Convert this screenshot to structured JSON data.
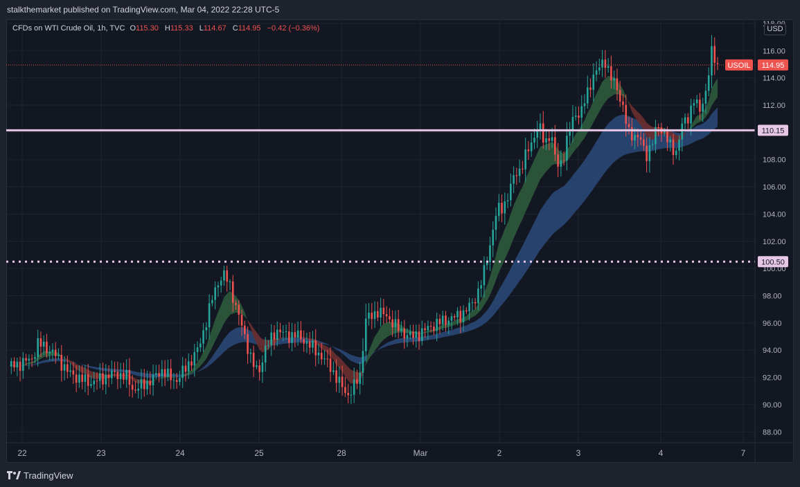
{
  "publish_info": "stalkthemarket published on TradingView.com, Mar 04, 2022 22:28 UTC-5",
  "footer": {
    "brand": "TradingView",
    "logo_icon": "tradingview-logo-icon"
  },
  "legend": {
    "symbol": "CFDs on WTI Crude Oil, 1h, TVC",
    "open_label": "O",
    "open": "115.30",
    "high_label": "H",
    "high": "115.33",
    "low_label": "L",
    "low": "114.67",
    "close_label": "C",
    "close": "114.95",
    "change": "−0.42 (−0.36%)"
  },
  "currency": "USD",
  "colors": {
    "up": "#26a69a",
    "down": "#ef5350",
    "fast_ribbon_up": "#2e5a3c",
    "fast_ribbon_down": "#6b2e2e",
    "slow_ribbon": "#2a4a7a",
    "level": "#e6c7e6",
    "background": "#131722"
  },
  "chart_data": {
    "type": "candlestick",
    "y_axis": {
      "ticks": [
        "88.00",
        "90.00",
        "92.00",
        "94.00",
        "96.00",
        "98.00",
        "100.00",
        "102.00",
        "104.00",
        "106.00",
        "108.00",
        "110.00",
        "112.00",
        "114.00",
        "116.00",
        "118.00"
      ],
      "range": [
        87.2,
        118.3
      ]
    },
    "x_axis": {
      "ticks": [
        "22",
        "23",
        "24",
        "25",
        "28",
        "Mar",
        "2",
        "3",
        "4",
        "7"
      ]
    },
    "levels": [
      {
        "value": 110.15,
        "label": "110.15",
        "style": "solid"
      },
      {
        "value": 100.5,
        "label": "100.50",
        "style": "dotted"
      }
    ],
    "last_price": {
      "symbol": "USOIL",
      "value": "114.95"
    },
    "series": [
      {
        "name": "WTI Crude 1h (approx. close path)",
        "points": [
          [
            0,
            92.8
          ],
          [
            2,
            93.0
          ],
          [
            4,
            93.4
          ],
          [
            5,
            94.5
          ],
          [
            6,
            94.3
          ],
          [
            8,
            93.6
          ],
          [
            10,
            92.4
          ],
          [
            12,
            91.9
          ],
          [
            14,
            91.6
          ],
          [
            15,
            91.8
          ],
          [
            16,
            92.0
          ],
          [
            18,
            92.3
          ],
          [
            20,
            92.0
          ],
          [
            21,
            91.0
          ],
          [
            22,
            91.3
          ],
          [
            24,
            91.8
          ],
          [
            26,
            92.6
          ],
          [
            27,
            92.0
          ],
          [
            28,
            91.7
          ],
          [
            30,
            92.8
          ],
          [
            32,
            94.2
          ],
          [
            33,
            95.8
          ],
          [
            34,
            97.5
          ],
          [
            35,
            98.8
          ],
          [
            36,
            99.6
          ],
          [
            37,
            99.0
          ],
          [
            38,
            97.5
          ],
          [
            39,
            96.0
          ],
          [
            40,
            94.5
          ],
          [
            41,
            93.0
          ],
          [
            42,
            92.3
          ],
          [
            43,
            94.0
          ],
          [
            45,
            95.5
          ],
          [
            47,
            95.0
          ],
          [
            48,
            95.2
          ],
          [
            50,
            94.6
          ],
          [
            52,
            93.8
          ],
          [
            54,
            92.8
          ],
          [
            55,
            92.0
          ],
          [
            56,
            91.3
          ],
          [
            57,
            90.7
          ],
          [
            58,
            91.3
          ],
          [
            59,
            92.2
          ],
          [
            60,
            96.3
          ],
          [
            61,
            96.5
          ],
          [
            62,
            96.9
          ],
          [
            64,
            96.3
          ],
          [
            66,
            95.3
          ],
          [
            68,
            95.0
          ],
          [
            70,
            95.5
          ],
          [
            72,
            96.0
          ],
          [
            74,
            96.3
          ],
          [
            76,
            96.6
          ],
          [
            78,
            97.5
          ],
          [
            79,
            98.5
          ],
          [
            80,
            100.0
          ],
          [
            81,
            102.2
          ],
          [
            82,
            104.3
          ],
          [
            83,
            104.5
          ],
          [
            84,
            105.5
          ],
          [
            85,
            107.0
          ],
          [
            86,
            107.3
          ],
          [
            87,
            108.5
          ],
          [
            88,
            109.5
          ],
          [
            89,
            110.5
          ],
          [
            90,
            109.2
          ],
          [
            91,
            110.0
          ],
          [
            92,
            107.5
          ],
          [
            93,
            108.0
          ],
          [
            94,
            109.8
          ],
          [
            95,
            111.5
          ],
          [
            96,
            111.2
          ],
          [
            97,
            112.8
          ],
          [
            98,
            114.0
          ],
          [
            99,
            114.6
          ],
          [
            100,
            115.5
          ],
          [
            101,
            114.0
          ],
          [
            102,
            113.5
          ],
          [
            103,
            112.0
          ],
          [
            104,
            110.0
          ],
          [
            105,
            109.8
          ],
          [
            106,
            109.5
          ],
          [
            107,
            108.3
          ],
          [
            108,
            109.2
          ],
          [
            109,
            110.5
          ],
          [
            110,
            110.0
          ],
          [
            111,
            109.0
          ],
          [
            112,
            108.5
          ],
          [
            113,
            110.5
          ],
          [
            114,
            111.0
          ],
          [
            115,
            112.5
          ],
          [
            116,
            111.5
          ],
          [
            117,
            113.0
          ],
          [
            118,
            115.8
          ],
          [
            119,
            114.95
          ]
        ]
      }
    ],
    "title": "",
    "xlabel": "",
    "ylabel": "",
    "grid": true
  }
}
